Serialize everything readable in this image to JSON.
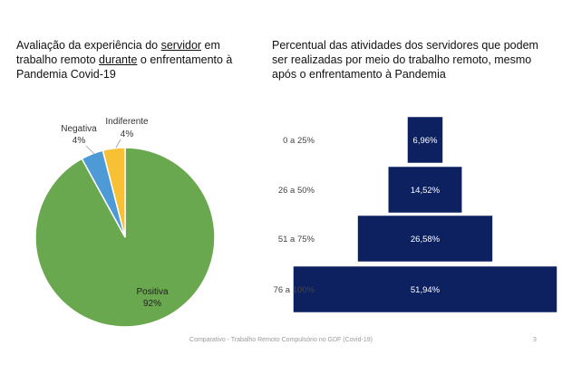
{
  "left_title": {
    "part1": "Avaliação da experiência do ",
    "u1": "servidor",
    "part2": " em trabalho remoto ",
    "u2": "durante",
    "part3": " o enfrentamento à Pandemia Covid-19"
  },
  "right_title": "Percentual das atividades dos servidores que podem ser realizadas por meio do trabalho remoto, mesmo após o enfrentamento à Pandemia",
  "footer": "Comparativo - Trabalho Remoto Compulsório no GDF (Covid-19)",
  "page_number": "3",
  "chart_data": [
    {
      "type": "pie",
      "slices": [
        {
          "label": "Positiva",
          "percent_label": "92%",
          "value": 92,
          "color": "#6aa84f"
        },
        {
          "label": "Negativa",
          "percent_label": "4%",
          "value": 4,
          "color": "#4e9ad6"
        },
        {
          "label": "Indiferente",
          "percent_label": "4%",
          "value": 4,
          "color": "#f7c035"
        }
      ]
    },
    {
      "type": "bar",
      "orientation": "horizontal-funnel",
      "categories": [
        "0 a 25%",
        "26 a 50%",
        "51 a 75%",
        "76 a 100%"
      ],
      "values": [
        6.96,
        14.52,
        26.58,
        51.94
      ],
      "value_labels": [
        "6,96%",
        "14,52%",
        "26,58%",
        "51,94%"
      ],
      "color": "#0d2161"
    }
  ]
}
